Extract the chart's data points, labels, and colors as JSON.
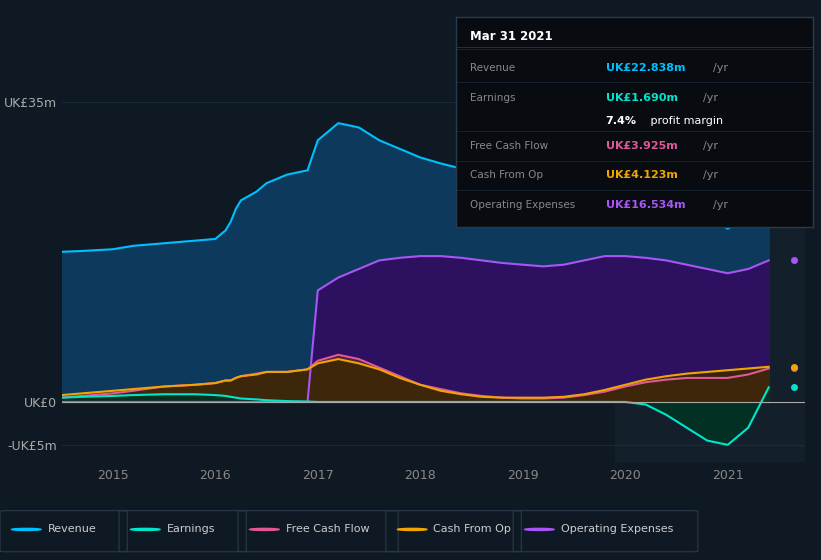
{
  "background_color": "#0f1923",
  "plot_bg_color": "#0f1923",
  "ylim": [
    -7,
    40
  ],
  "ytick_positions": [
    -5,
    0,
    35
  ],
  "ytick_labels": [
    "-UK£5m",
    "UK£0",
    "UK£35m"
  ],
  "xlim": [
    2014.5,
    2021.75
  ],
  "xticks": [
    2015,
    2016,
    2017,
    2018,
    2019,
    2020,
    2021
  ],
  "grid_color": "#243447",
  "highlight_x_start": 2019.9,
  "highlight_x_end": 2021.75,
  "highlight_color": "#1a2535",
  "x_data": [
    2014.5,
    2014.7,
    2015.0,
    2015.2,
    2015.5,
    2015.8,
    2016.0,
    2016.1,
    2016.15,
    2016.2,
    2016.25,
    2016.4,
    2016.5,
    2016.7,
    2016.9,
    2017.0,
    2017.2,
    2017.4,
    2017.6,
    2017.8,
    2018.0,
    2018.2,
    2018.4,
    2018.6,
    2018.8,
    2019.0,
    2019.2,
    2019.4,
    2019.6,
    2019.8,
    2020.0,
    2020.2,
    2020.4,
    2020.6,
    2020.8,
    2021.0,
    2021.2,
    2021.4
  ],
  "revenue_y": [
    17.5,
    17.6,
    17.8,
    18.2,
    18.5,
    18.8,
    19.0,
    20.0,
    21.0,
    22.5,
    23.5,
    24.5,
    25.5,
    26.5,
    27.0,
    30.5,
    32.5,
    32.0,
    30.5,
    29.5,
    28.5,
    27.8,
    27.2,
    26.8,
    26.5,
    26.2,
    25.8,
    26.2,
    27.0,
    27.8,
    28.2,
    27.2,
    24.5,
    22.5,
    21.5,
    20.2,
    21.5,
    22.8
  ],
  "op_exp_y": [
    0.0,
    0.0,
    0.0,
    0.0,
    0.0,
    0.0,
    0.0,
    0.0,
    0.0,
    0.0,
    0.0,
    0.0,
    0.0,
    0.0,
    0.0,
    13.0,
    14.5,
    15.5,
    16.5,
    16.8,
    17.0,
    17.0,
    16.8,
    16.5,
    16.2,
    16.0,
    15.8,
    16.0,
    16.5,
    17.0,
    17.0,
    16.8,
    16.5,
    16.0,
    15.5,
    15.0,
    15.5,
    16.5
  ],
  "free_cash_flow_y": [
    0.5,
    0.7,
    1.0,
    1.3,
    1.8,
    2.0,
    2.2,
    2.5,
    2.5,
    2.8,
    3.0,
    3.3,
    3.5,
    3.5,
    3.8,
    4.8,
    5.5,
    5.0,
    4.0,
    3.0,
    2.0,
    1.5,
    1.0,
    0.7,
    0.5,
    0.4,
    0.4,
    0.5,
    0.8,
    1.2,
    1.8,
    2.3,
    2.6,
    2.8,
    2.8,
    2.8,
    3.2,
    3.9
  ],
  "cash_from_op_y": [
    0.8,
    1.0,
    1.3,
    1.5,
    1.8,
    2.0,
    2.2,
    2.5,
    2.5,
    2.8,
    3.0,
    3.2,
    3.5,
    3.5,
    3.8,
    4.5,
    5.0,
    4.5,
    3.8,
    2.8,
    2.0,
    1.3,
    0.9,
    0.6,
    0.5,
    0.5,
    0.5,
    0.6,
    0.9,
    1.4,
    2.0,
    2.6,
    3.0,
    3.3,
    3.5,
    3.7,
    3.9,
    4.1
  ],
  "earnings_y": [
    0.5,
    0.6,
    0.7,
    0.8,
    0.9,
    0.9,
    0.8,
    0.7,
    0.6,
    0.5,
    0.4,
    0.3,
    0.2,
    0.1,
    0.05,
    0.0,
    0.0,
    0.0,
    0.0,
    0.0,
    0.0,
    0.0,
    0.0,
    0.0,
    0.0,
    0.0,
    0.0,
    0.0,
    0.0,
    0.0,
    0.0,
    -0.3,
    -1.5,
    -3.0,
    -4.5,
    -5.0,
    -3.0,
    1.7
  ],
  "revenue_color": "#00bfff",
  "revenue_fill": "#0d3a5c",
  "op_exp_color": "#a855f7",
  "op_exp_fill": "#2d1060",
  "fcf_color": "#e05898",
  "fcf_fill": "#5a2040",
  "cfop_color": "#f0a500",
  "cfop_fill": "#3a2800",
  "earnings_color": "#00e5cc",
  "earnings_fill": "#003322",
  "info_box": {
    "title": "Mar 31 2021",
    "revenue_val": "UK£22.838m",
    "earnings_val": "UK£1.690m",
    "margin_pct": "7.4%",
    "margin_text": " profit margin",
    "fcf_val": "UK£3.925m",
    "cfop_val": "UK£4.123m",
    "opex_val": "UK£16.534m",
    "revenue_color": "#00bfff",
    "earnings_color": "#00e5cc",
    "fcf_color": "#e05898",
    "cfop_color": "#f0a500",
    "opex_color": "#a855f7",
    "label_color": "#888888",
    "yr_color": "#888888",
    "bg_color": "#080c10",
    "border_color": "#2a3a4a",
    "title_color": "#ffffff"
  },
  "legend_items": [
    {
      "label": "Revenue",
      "color": "#00bfff"
    },
    {
      "label": "Earnings",
      "color": "#00e5cc"
    },
    {
      "label": "Free Cash Flow",
      "color": "#e05898"
    },
    {
      "label": "Cash From Op",
      "color": "#f0a500"
    },
    {
      "label": "Operating Expenses",
      "color": "#a855f7"
    }
  ]
}
